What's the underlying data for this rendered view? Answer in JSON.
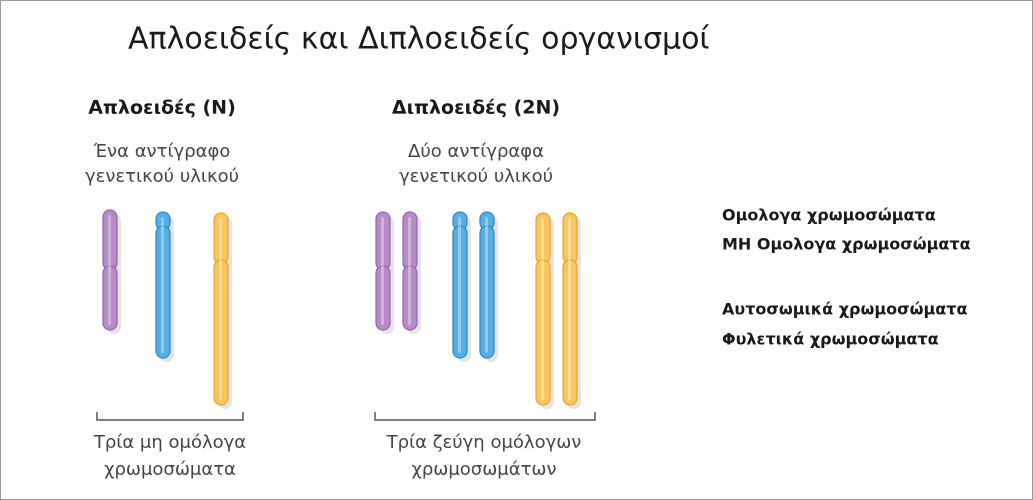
{
  "title": "Απλοειδείς και Διπλοειδείς οργανισμοί",
  "haploid": {
    "heading": "Απλοειδές (Ν)",
    "description": [
      "Ένα αντίγραφο",
      "γενετικού υλικού"
    ],
    "caption": [
      "Τρία μη ομόλογα",
      "χρωμοσώματα"
    ]
  },
  "diploid": {
    "heading": "Διπλοειδές (2Ν)",
    "description": [
      "Δύο αντίγραφα",
      "γενετικού υλικού"
    ],
    "caption": [
      "Τρία ζεύγη ομόλογων",
      "χρωμοσωμάτων"
    ]
  },
  "terms": [
    [
      "Ομολογα χρωμοσώματα",
      "ΜΗ Ομολογα χρωμοσώματα"
    ],
    [
      "Αυτοσωμικά χρωμοσώματα",
      "Φυλετικά χρωμοσώματα"
    ]
  ]
}
